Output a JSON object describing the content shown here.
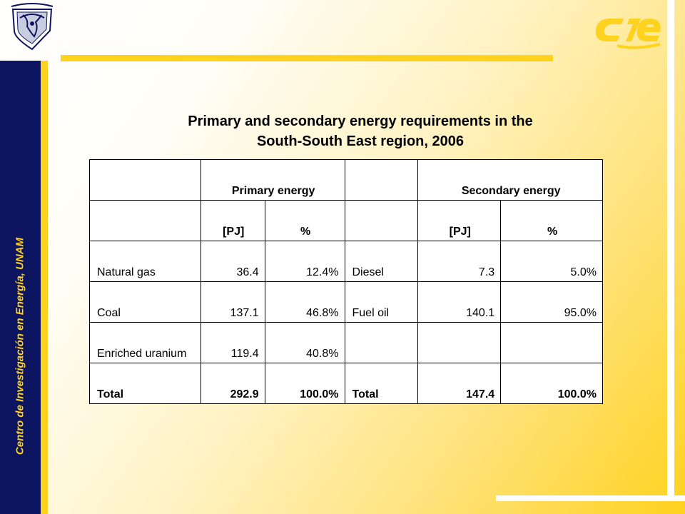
{
  "sidebar": {
    "text": "Centro de Investigación en Energía, UNAM"
  },
  "title": {
    "line1": "Primary and secondary energy requirements in the",
    "line2": "South-South East region, 2006"
  },
  "table": {
    "group_headers": {
      "primary": "Primary energy",
      "secondary": "Secondary energy"
    },
    "unit_headers": {
      "pj": "[PJ]",
      "pct": "%"
    },
    "rows": [
      {
        "source": "Natural gas",
        "pj": "36.4",
        "pct": "12.4%",
        "sec_source": "Diesel",
        "sec_pj": "7.3",
        "sec_pct": "5.0%"
      },
      {
        "source": "Coal",
        "pj": "137.1",
        "pct": "46.8%",
        "sec_source": "Fuel oil",
        "sec_pj": "140.1",
        "sec_pct": "95.0%"
      },
      {
        "source": "Enriched uranium",
        "pj": "119.4",
        "pct": "40.8%",
        "sec_source": "",
        "sec_pj": "",
        "sec_pct": ""
      }
    ],
    "total": {
      "source": "Total",
      "pj": "292.9",
      "pct": "100.0%",
      "sec_source": "Total",
      "sec_pj": "147.4",
      "sec_pct": "100.0%"
    }
  },
  "colors": {
    "navy": "#0d1560",
    "gold": "#ffd21f"
  },
  "icons": {
    "left_logo": "unam-seal-icon",
    "right_logo": "cie-logo-icon"
  }
}
